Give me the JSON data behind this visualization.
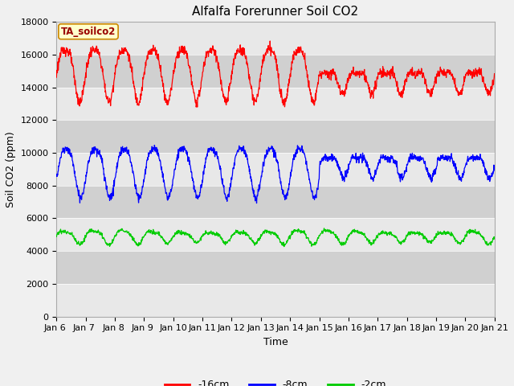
{
  "title": "Alfalfa Forerunner Soil CO2",
  "ylabel": "Soil CO2 (ppm)",
  "xlabel": "Time",
  "legend_label": "TA_soilco2",
  "series_labels": [
    "-16cm",
    "-8cm",
    "-2cm"
  ],
  "series_colors": [
    "red",
    "blue",
    "#00cc00"
  ],
  "ylim": [
    0,
    18000
  ],
  "yticks": [
    0,
    2000,
    4000,
    6000,
    8000,
    10000,
    12000,
    14000,
    16000,
    18000
  ],
  "background_color": "#f0f0f0",
  "plot_bg_color": "#ffffff",
  "band_light": "#e8e8e8",
  "band_dark": "#d0d0d0",
  "title_fontsize": 11,
  "axis_fontsize": 9,
  "tick_fontsize": 8
}
